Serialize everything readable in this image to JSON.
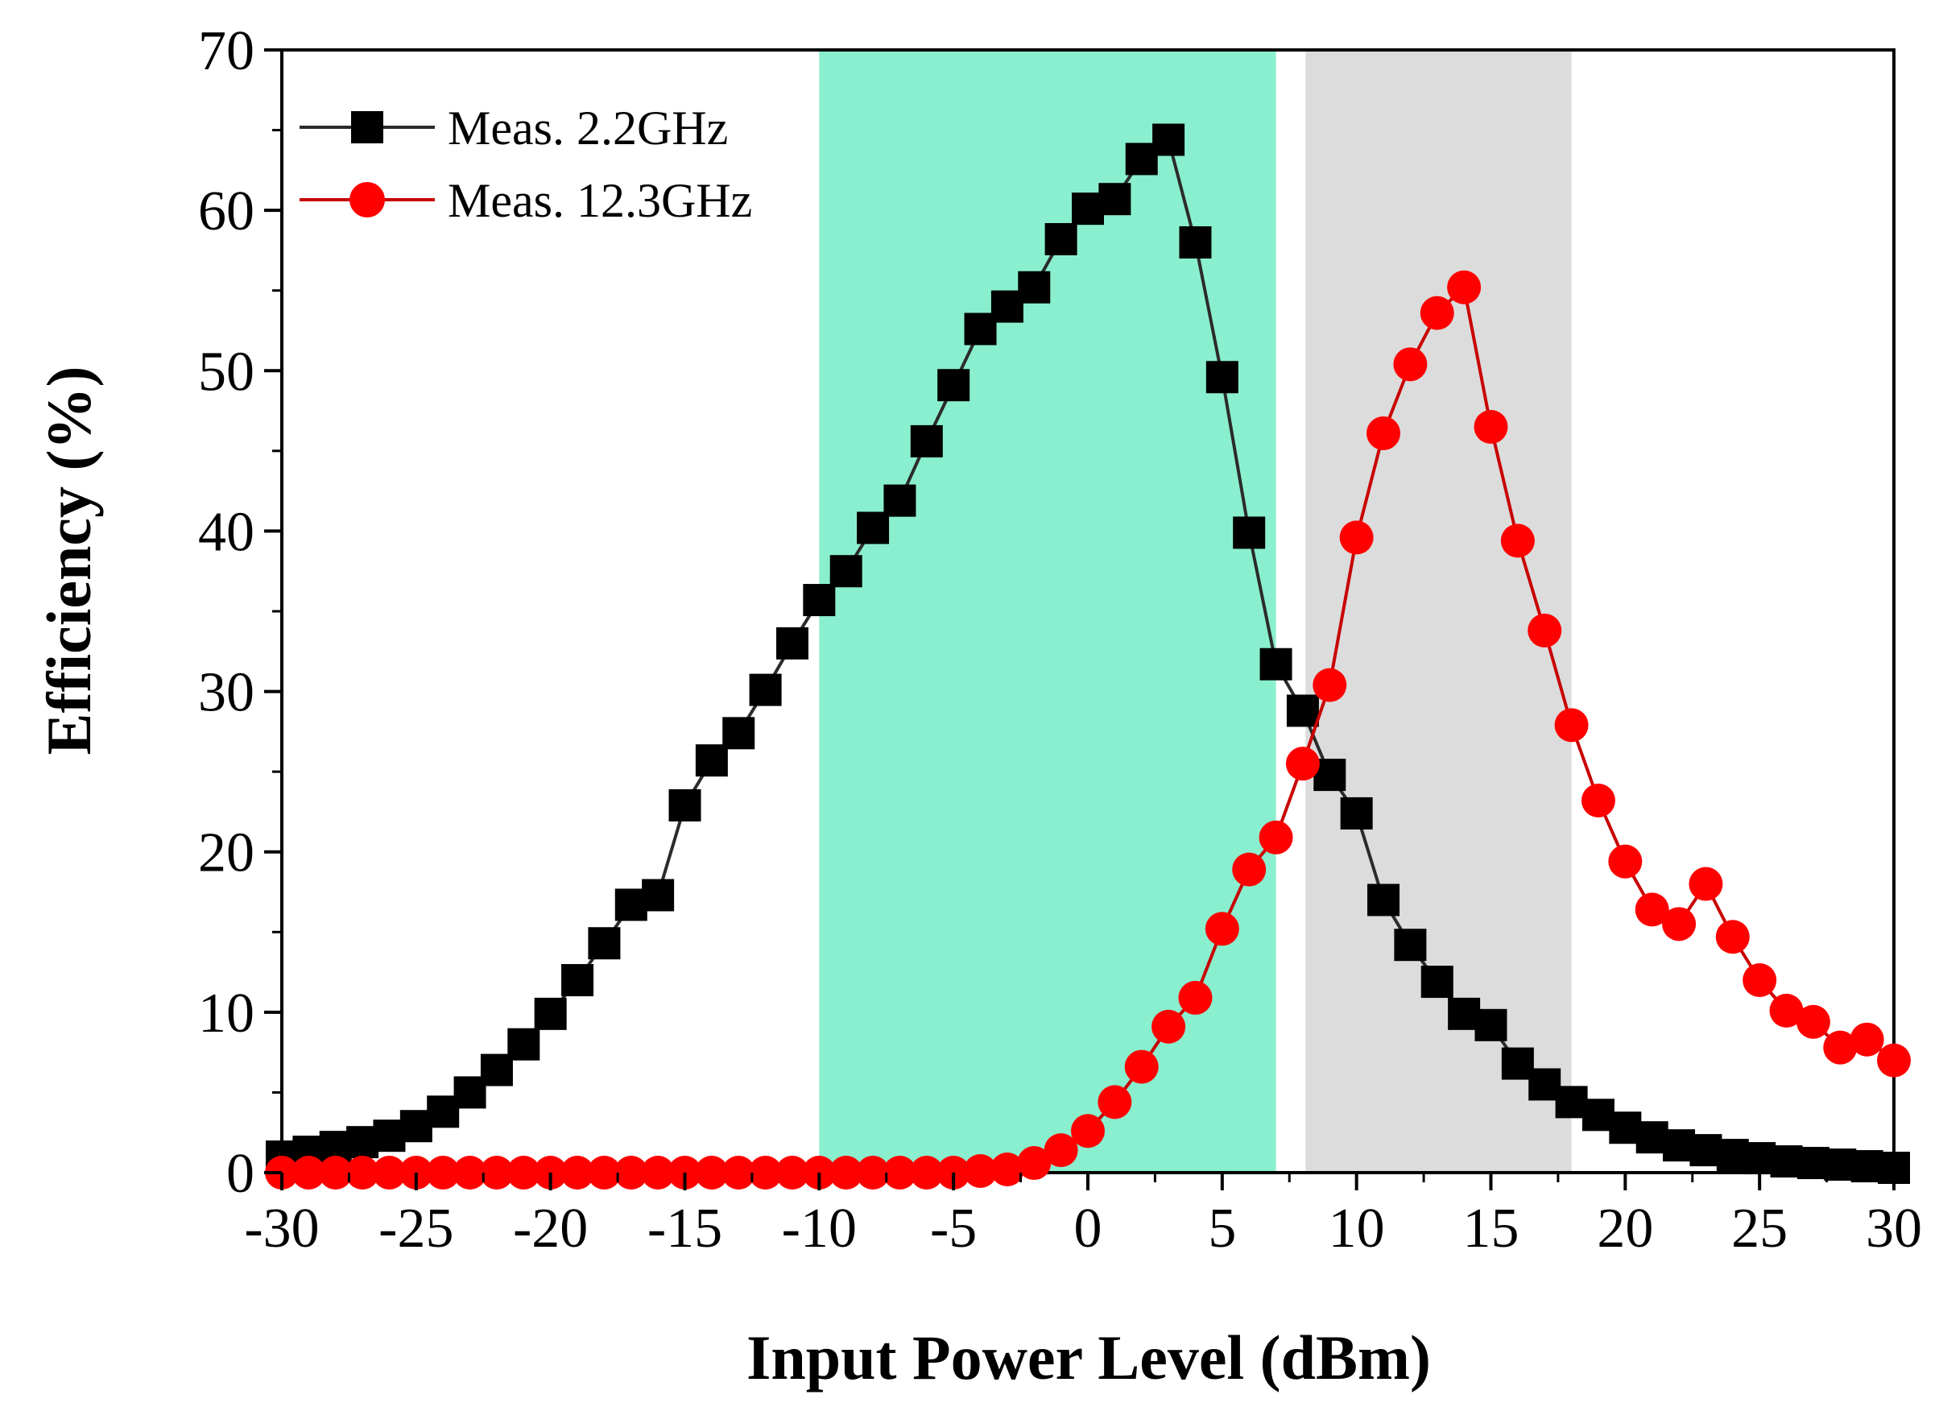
{
  "chart_data": {
    "type": "line",
    "title": "",
    "xlabel": "Input Power Level (dBm)",
    "ylabel": "Efficiency (%)",
    "xlim": [
      -30,
      30
    ],
    "ylim": [
      0,
      70
    ],
    "x_ticks": [
      -30,
      -25,
      -20,
      -15,
      -10,
      -5,
      0,
      5,
      10,
      15,
      20,
      25,
      30
    ],
    "y_ticks": [
      0,
      10,
      20,
      30,
      40,
      50,
      60,
      70
    ],
    "legend_position": "top-left",
    "shaded_regions": [
      {
        "x_from": -10,
        "x_to": 7,
        "color": "#8AEFCF"
      },
      {
        "x_from": 8.1,
        "x_to": 18,
        "color": "#DCDCDC"
      }
    ],
    "series": [
      {
        "name": "Meas. 2.2GHz",
        "color": "#000000",
        "line_color": "#2b2b2b",
        "marker": "square",
        "x": [
          -30,
          -29,
          -28,
          -27,
          -26,
          -25,
          -24,
          -23,
          -22,
          -21,
          -20,
          -19,
          -18,
          -17,
          -16,
          -15,
          -14,
          -13,
          -12,
          -11,
          -10,
          -9,
          -8,
          -7,
          -6,
          -5,
          -4,
          -3,
          -2,
          -1,
          0,
          1,
          2,
          3,
          4,
          5,
          6,
          7,
          8,
          9,
          10,
          11,
          12,
          13,
          14,
          15,
          16,
          17,
          18,
          19,
          20,
          21,
          22,
          23,
          24,
          25,
          26,
          27,
          28,
          29,
          30
        ],
        "values": [
          1.0,
          1.3,
          1.6,
          1.9,
          2.3,
          2.9,
          3.8,
          5.0,
          6.4,
          8.0,
          9.9,
          12.0,
          14.3,
          16.7,
          17.3,
          22.9,
          25.7,
          27.4,
          30.1,
          33.0,
          35.7,
          37.5,
          40.2,
          41.9,
          45.6,
          49.1,
          52.6,
          54.0,
          55.2,
          58.2,
          60.1,
          60.7,
          63.2,
          64.4,
          58.0,
          49.6,
          39.9,
          31.7,
          28.8,
          24.8,
          22.4,
          17.0,
          14.2,
          11.9,
          9.9,
          9.2,
          6.8,
          5.5,
          4.4,
          3.6,
          2.8,
          2.2,
          1.7,
          1.4,
          1.1,
          0.9,
          0.7,
          0.6,
          0.5,
          0.4,
          0.3
        ]
      },
      {
        "name": "Meas. 12.3GHz",
        "color": "#FF0000",
        "line_color": "#C80000",
        "marker": "circle",
        "x": [
          -30,
          -29,
          -28,
          -27,
          -26,
          -25,
          -24,
          -23,
          -22,
          -21,
          -20,
          -19,
          -18,
          -17,
          -16,
          -15,
          -14,
          -13,
          -12,
          -11,
          -10,
          -9,
          -8,
          -7,
          -6,
          -5,
          -4,
          -3,
          -2,
          -1,
          0,
          1,
          2,
          3,
          4,
          5,
          6,
          7,
          8,
          9,
          10,
          11,
          12,
          13,
          14,
          15,
          16,
          17,
          18,
          19,
          20,
          21,
          22,
          23,
          24,
          25,
          26,
          27,
          28,
          29,
          30
        ],
        "values": [
          0,
          0,
          0,
          0,
          0,
          0,
          0,
          0,
          0,
          0,
          0,
          0,
          0,
          0,
          0,
          0,
          0,
          0,
          0,
          0,
          0,
          0,
          0,
          0,
          0,
          0,
          0.1,
          0.2,
          0.6,
          1.4,
          2.6,
          4.4,
          6.6,
          9.1,
          10.9,
          15.2,
          18.9,
          20.9,
          25.5,
          30.4,
          39.6,
          46.1,
          50.4,
          53.6,
          55.2,
          46.5,
          39.4,
          33.8,
          27.9,
          23.2,
          19.4,
          16.4,
          15.5,
          18.0,
          14.7,
          12.0,
          10.1,
          9.4,
          7.8,
          8.3,
          7.0
        ]
      }
    ]
  }
}
